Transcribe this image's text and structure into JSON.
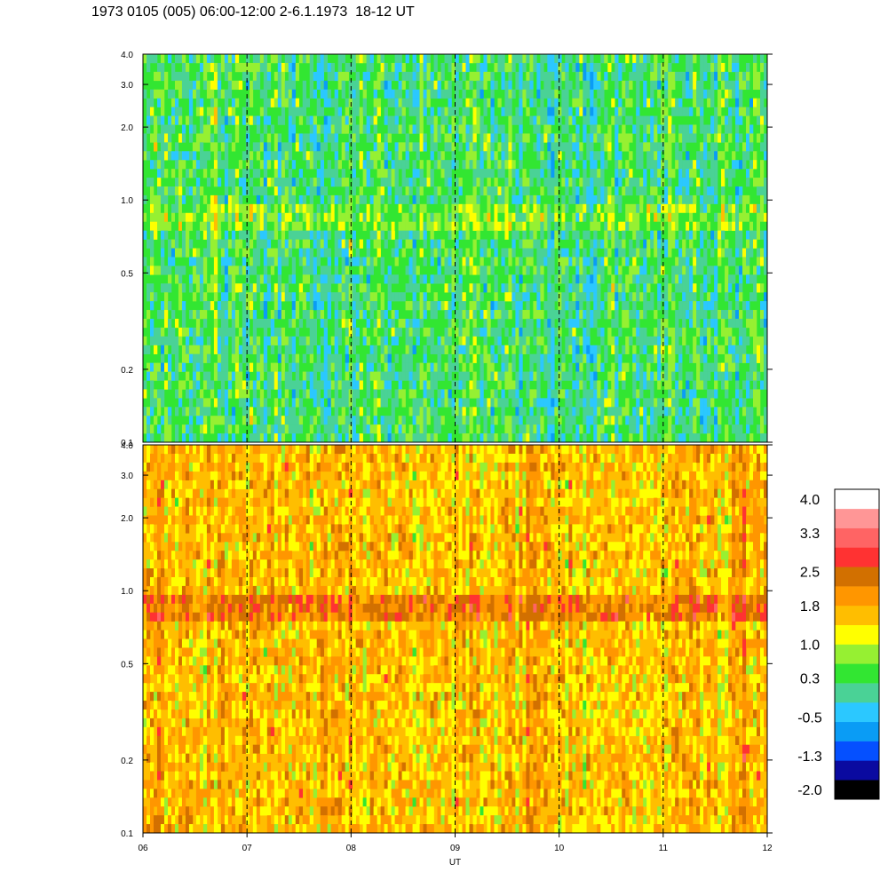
{
  "title": "1973 0105 (005) 06:00-12:00 2-6.1.1973  18-12 UT",
  "colors": {
    "colorbar": [
      "#000000",
      "#0a0aa0",
      "#0550ff",
      "#0a9cf5",
      "#2bc8ff",
      "#4ad296",
      "#32e632",
      "#96f032",
      "#ffff00",
      "#ffbe00",
      "#ff9600",
      "#d27000",
      "#ff3232",
      "#ff6464",
      "#ff9696",
      "#ffffff"
    ],
    "colorbar_border": "#000000",
    "background": "#ffffff"
  },
  "chart_data": [
    {
      "type": "heatmap",
      "panel": "top",
      "xlabel": "",
      "ylabel": "",
      "x_range": [
        6,
        12
      ],
      "x_ticks": [
        "06",
        "07",
        "08",
        "09",
        "10",
        "11",
        "12"
      ],
      "y_range": [
        0.1,
        4.0
      ],
      "y_scale": "log",
      "y_ticks": [
        0.1,
        0.2,
        0.5,
        1.0,
        2.0,
        3.0,
        4.0
      ],
      "y_tick_labels": [
        "0.1",
        "0.2",
        "0.5",
        "1.0",
        "2.0",
        "3.0",
        "4.0"
      ],
      "dashed_vertical_lines_at": [
        7,
        8,
        9,
        10,
        11
      ],
      "dominant_level": 0.3,
      "band": {
        "y_from": 0.75,
        "y_to": 0.95,
        "level": 0.7
      },
      "grid": false
    },
    {
      "type": "heatmap",
      "panel": "bottom",
      "xlabel": "UT",
      "ylabel": "",
      "x_range": [
        6,
        12
      ],
      "x_ticks": [
        "06",
        "07",
        "08",
        "09",
        "10",
        "11",
        "12"
      ],
      "y_range": [
        0.1,
        4.0
      ],
      "y_scale": "log",
      "y_ticks": [
        0.1,
        0.2,
        0.5,
        1.0,
        2.0,
        3.0,
        4.0
      ],
      "y_tick_labels": [
        "0.1",
        "0.2",
        "0.5",
        "1.0",
        "2.0",
        "3.0",
        "4.0"
      ],
      "dashed_vertical_lines_at": [
        7,
        8,
        9,
        10,
        11
      ],
      "dominant_level": 1.6,
      "band": {
        "y_from": 0.75,
        "y_to": 0.95,
        "level": 2.2
      },
      "grid": false
    },
    {
      "type": "colorbar",
      "levels": [
        -2.0,
        -1.3,
        -0.5,
        0.3,
        1.0,
        1.8,
        2.5,
        3.3,
        4.0
      ],
      "level_labels": [
        "-2.0",
        "-1.3",
        "-0.5",
        "0.3",
        "1.0",
        "1.8",
        "2.5",
        "3.3",
        "4.0"
      ],
      "range": [
        -2.0,
        4.0
      ],
      "placement": "right"
    }
  ]
}
